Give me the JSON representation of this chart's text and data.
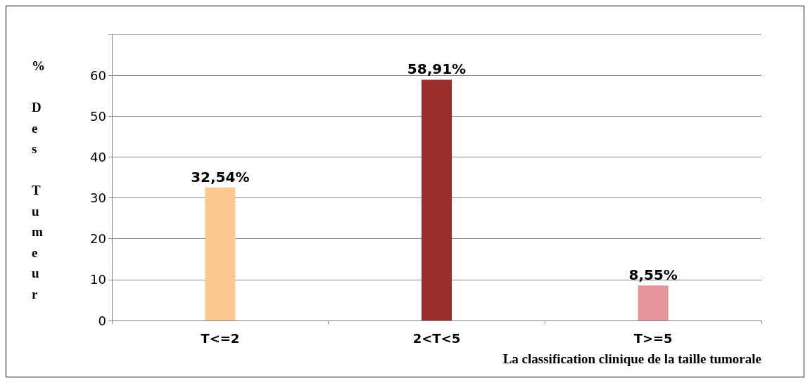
{
  "chart_data": {
    "type": "bar",
    "ylabel": "% Des Tumeur",
    "xlabel": "La classification clinique de la taille tumorale",
    "categories": [
      "T<=2",
      "2<T<5",
      "T>=5"
    ],
    "values": [
      32.54,
      58.91,
      8.55
    ],
    "colors": [
      "#fdc890",
      "#9b2d2d",
      "#e3959a"
    ],
    "value_labels": [
      "32,54%",
      "58,91%",
      "8,55%"
    ],
    "ylim": [
      0,
      70
    ],
    "yticks": [
      0,
      10,
      20,
      30,
      40,
      50,
      60,
      {
        "value": 70,
        "label": null
      }
    ],
    "grid": "y"
  }
}
